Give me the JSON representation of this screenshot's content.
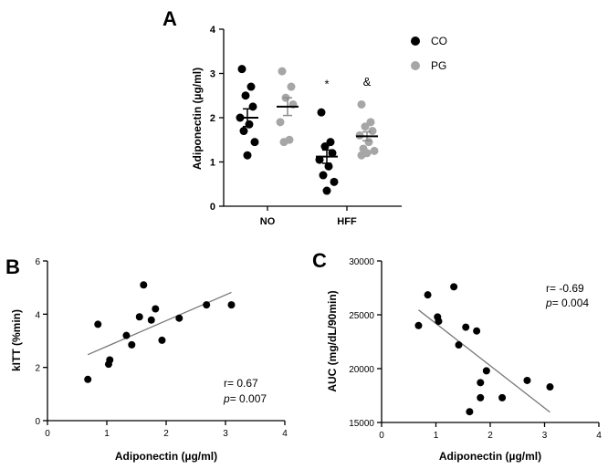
{
  "chart_data": [
    {
      "panel": "A",
      "type": "scatter",
      "ylabel": "Adiponectin (µg/ml)",
      "ylim": [
        0,
        4
      ],
      "yticks": [
        "0",
        "1",
        "2",
        "3",
        "4"
      ],
      "categories": [
        "NO",
        "HFF"
      ],
      "legend": {
        "placement": "top-right",
        "entries": [
          {
            "label": "CO",
            "color": "#000000"
          },
          {
            "label": "PG",
            "color": "#a6a6a6"
          }
        ]
      },
      "series": [
        {
          "name": "CO",
          "color": "#000000",
          "groups": [
            {
              "category": "NO",
              "values": [
                3.1,
                2.7,
                2.5,
                2.25,
                2.0,
                1.85,
                1.7,
                1.45,
                1.15
              ],
              "mean": 2.0,
              "sem": 0.2
            },
            {
              "category": "HFF",
              "values": [
                2.12,
                1.45,
                1.35,
                1.2,
                1.05,
                0.9,
                0.7,
                0.55,
                0.35
              ],
              "mean": 1.12,
              "sem": 0.15
            }
          ]
        },
        {
          "name": "PG",
          "color": "#a6a6a6",
          "groups": [
            {
              "category": "NO",
              "values": [
                3.05,
                2.7,
                2.45,
                2.3,
                1.9,
                1.5,
                1.45
              ],
              "mean": 2.25,
              "sem": 0.2
            },
            {
              "category": "HFF",
              "values": [
                2.3,
                1.9,
                1.8,
                1.7,
                1.6,
                1.45,
                1.3,
                1.25,
                1.2,
                1.15
              ],
              "mean": 1.58,
              "sem": 0.1
            }
          ]
        }
      ],
      "annotations": [
        {
          "text": "*",
          "category": "HFF",
          "series": "CO",
          "y": 2.75
        },
        {
          "text": "&",
          "category": "HFF",
          "series": "PG",
          "y": 2.8
        }
      ]
    },
    {
      "panel": "B",
      "type": "scatter",
      "xlabel": "Adiponectin (µg/ml)",
      "ylabel": "kITT (%min)",
      "xlim": [
        0,
        4
      ],
      "ylim": [
        0,
        6
      ],
      "xticks": [
        "0",
        "1",
        "2",
        "3",
        "4"
      ],
      "yticks": [
        "0",
        "2",
        "4",
        "6"
      ],
      "points": [
        {
          "x": 0.68,
          "y": 1.55
        },
        {
          "x": 0.85,
          "y": 3.62
        },
        {
          "x": 1.03,
          "y": 2.12
        },
        {
          "x": 1.05,
          "y": 2.28
        },
        {
          "x": 1.33,
          "y": 3.2
        },
        {
          "x": 1.42,
          "y": 2.85
        },
        {
          "x": 1.55,
          "y": 3.9
        },
        {
          "x": 1.62,
          "y": 5.1
        },
        {
          "x": 1.75,
          "y": 3.78
        },
        {
          "x": 1.82,
          "y": 4.2
        },
        {
          "x": 1.93,
          "y": 3.02
        },
        {
          "x": 2.22,
          "y": 3.85
        },
        {
          "x": 2.68,
          "y": 4.35
        },
        {
          "x": 3.1,
          "y": 4.35
        }
      ],
      "fit": {
        "x": [
          0.68,
          3.1
        ],
        "y": [
          2.48,
          4.82
        ]
      },
      "stats": {
        "r": "r= 0.67",
        "p_label": "p",
        "p_value": "= 0.007"
      }
    },
    {
      "panel": "C",
      "type": "scatter",
      "xlabel": "Adiponectin (µg/ml)",
      "ylabel": "AUC (mg/dL/90min)",
      "xlim": [
        0,
        4
      ],
      "ylim": [
        15000,
        30000
      ],
      "xticks": [
        "0",
        "1",
        "2",
        "3",
        "4"
      ],
      "yticks": [
        "15000",
        "20000",
        "25000",
        "30000"
      ],
      "points": [
        {
          "x": 0.68,
          "y": 24000
        },
        {
          "x": 0.85,
          "y": 26850
        },
        {
          "x": 1.03,
          "y": 24800
        },
        {
          "x": 1.05,
          "y": 24400
        },
        {
          "x": 1.33,
          "y": 27600
        },
        {
          "x": 1.42,
          "y": 22200
        },
        {
          "x": 1.55,
          "y": 23850
        },
        {
          "x": 1.62,
          "y": 16000
        },
        {
          "x": 1.75,
          "y": 23500
        },
        {
          "x": 1.82,
          "y": 17300
        },
        {
          "x": 1.82,
          "y": 18700
        },
        {
          "x": 1.93,
          "y": 19800
        },
        {
          "x": 2.22,
          "y": 17300
        },
        {
          "x": 2.68,
          "y": 18900
        },
        {
          "x": 3.1,
          "y": 18300
        }
      ],
      "fit": {
        "x": [
          0.68,
          3.1
        ],
        "y": [
          25450,
          15950
        ]
      },
      "stats": {
        "r": "r= -0.69",
        "p_label": "p",
        "p_value": "= 0.004"
      }
    }
  ]
}
